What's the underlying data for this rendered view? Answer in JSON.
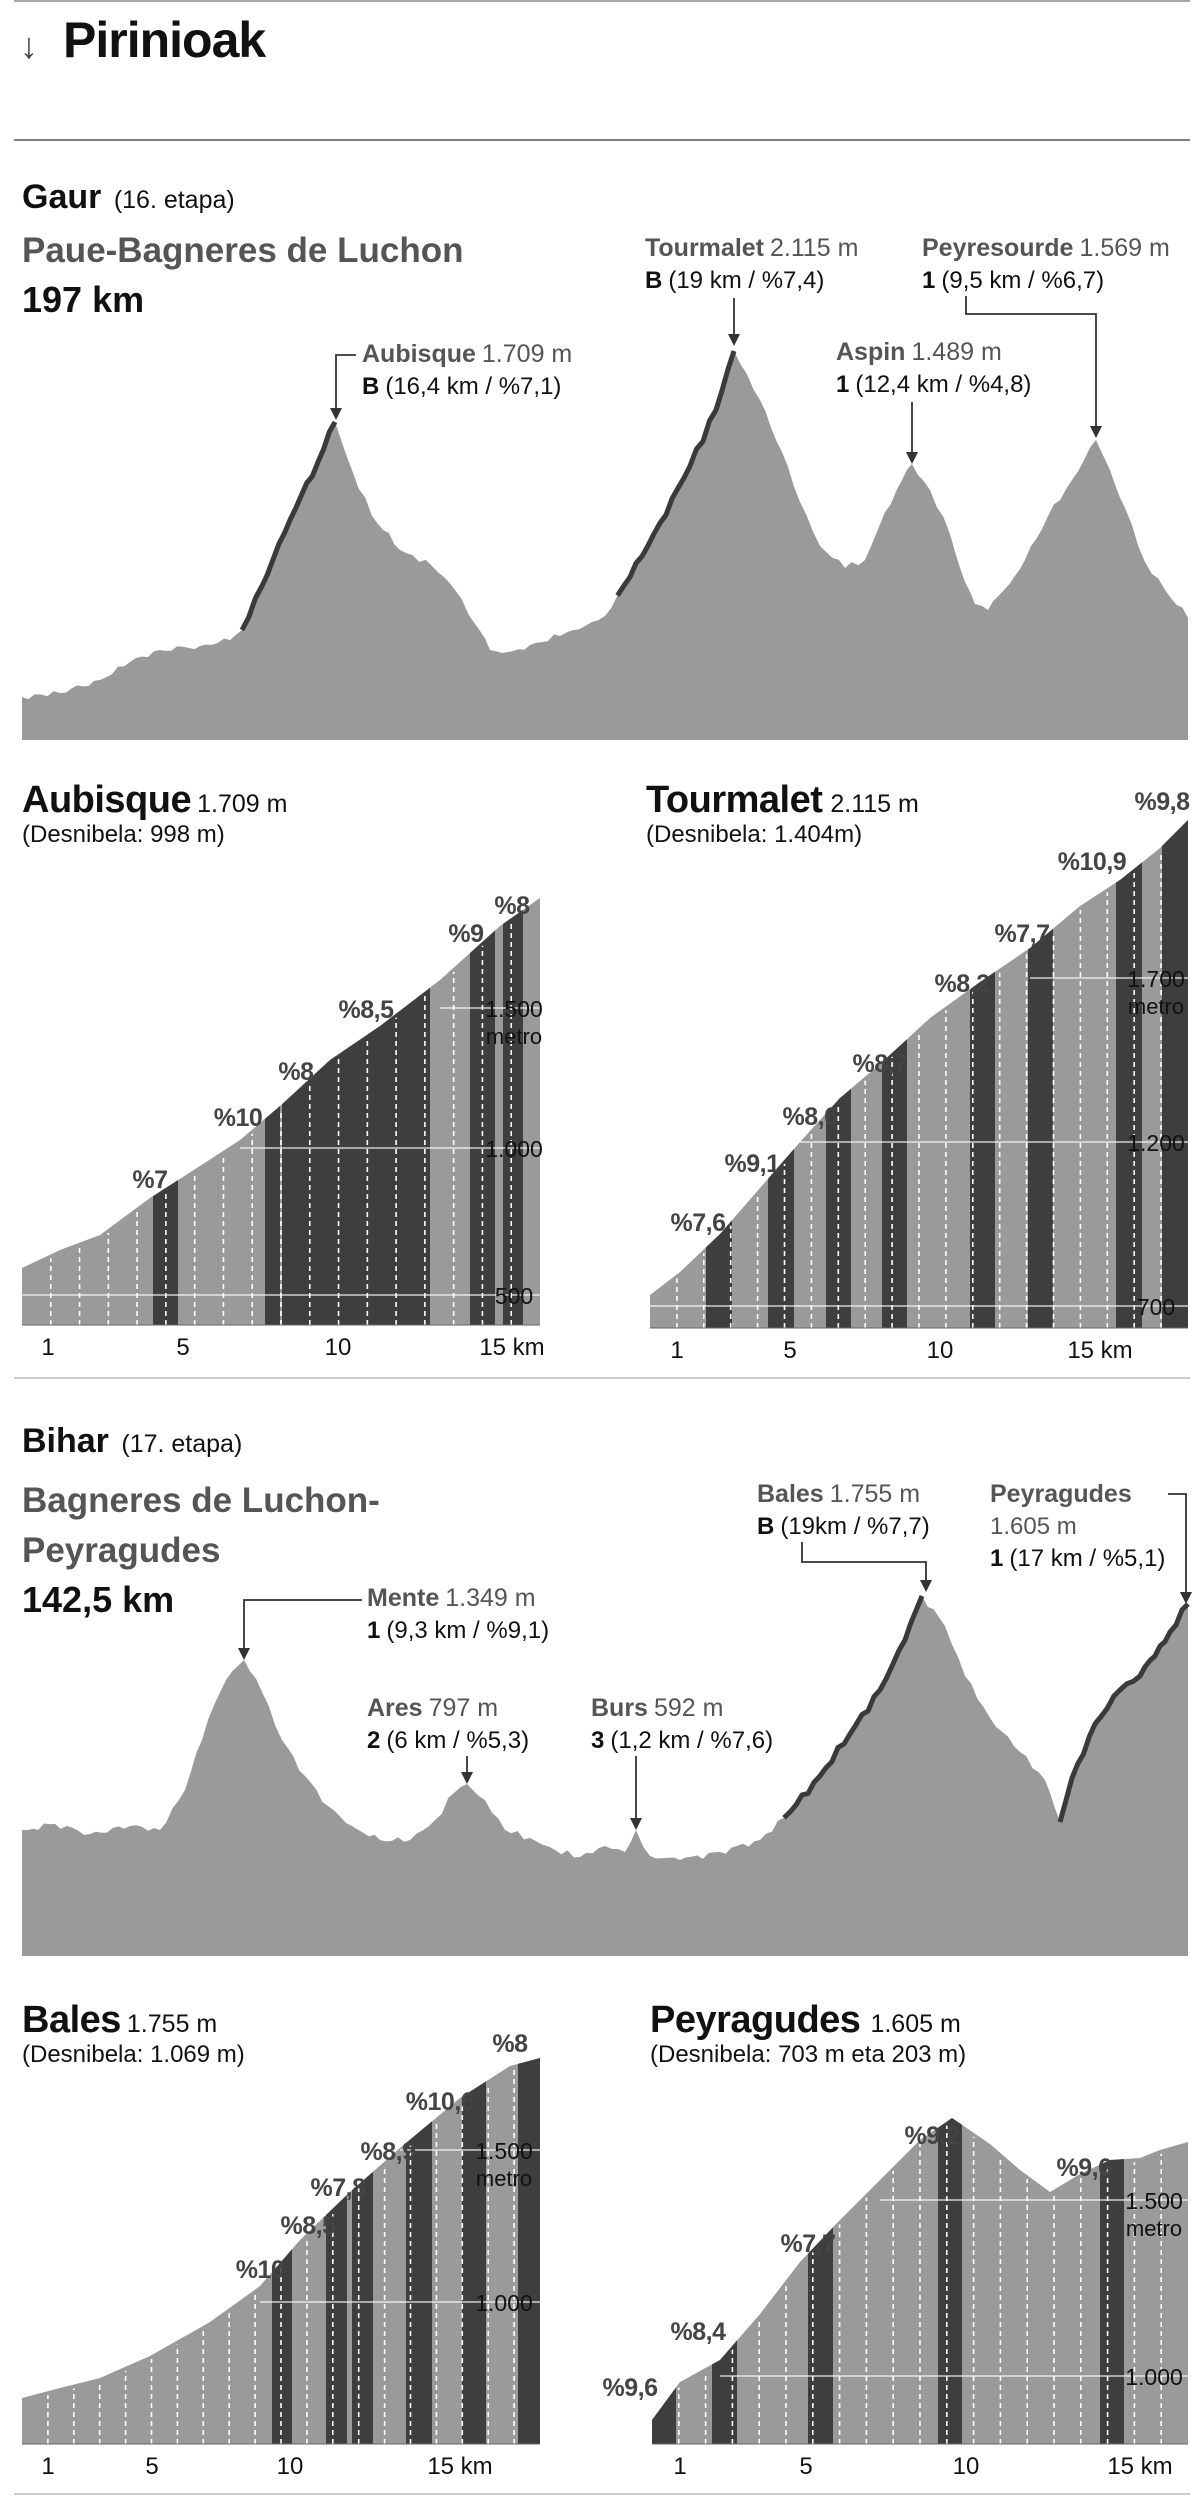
{
  "header": {
    "arrow": "↓",
    "title": "Pirinioak"
  },
  "colors": {
    "profile": "#9a9a9a",
    "dark": "#3e3e3e",
    "ridge": "#3a3a3a",
    "text": "#111111",
    "name": "#555555",
    "grid": "#ffffff"
  },
  "stage1": {
    "day": "Gaur",
    "stage": "(16. etapa)",
    "route": "Paue-Bagneres de Luchon",
    "distance": "197 km"
  },
  "stage2": {
    "day": "Bihar",
    "stage": "(17. etapa)",
    "route1": "Bagneres de Luchon-",
    "route2": "Peyragudes",
    "distance": "142,5 km"
  },
  "chart_data": [
    {
      "type": "area",
      "id": "overview-16",
      "peaks": [
        {
          "name": "Aubisque",
          "elev": "1.709 m",
          "cat": "B",
          "info": "(16,4 km / %7,1)"
        },
        {
          "name": "Tourmalet",
          "elev": "2.115 m",
          "cat": "B",
          "info": "(19 km / %7,4)"
        },
        {
          "name": "Aspin",
          "elev": "1.489 m",
          "cat": "1",
          "info": "(12,4 km / %4,8)"
        },
        {
          "name": "Peyresourde",
          "elev": "1.569 m",
          "cat": "1",
          "info": "(9,5 km / %6,7)"
        }
      ]
    },
    {
      "type": "area",
      "id": "overview-17",
      "peaks": [
        {
          "name": "Mente",
          "elev": "1.349 m",
          "cat": "1",
          "info": "(9,3 km / %9,1)"
        },
        {
          "name": "Ares",
          "elev": "797 m",
          "cat": "2",
          "info": "(6 km / %5,3)"
        },
        {
          "name": "Burs",
          "elev": "592 m",
          "cat": "3",
          "info": "(1,2 km / %7,6)"
        },
        {
          "name": "Bales",
          "elev": "1.755 m",
          "cat": "B",
          "info": "(19km / %7,7)"
        },
        {
          "name": "Peyragudes",
          "elev": "1.605 m",
          "cat": "1",
          "info": "(17 km / %5,1)"
        }
      ]
    },
    {
      "type": "area",
      "id": "aubisque",
      "title": "Aubisque",
      "elev": "1.709 m",
      "subtitle": "(Desnibela: 998 m)",
      "xticks": [
        "1",
        "5",
        "10",
        "15 km"
      ],
      "yticks": [
        "500",
        "1.000",
        "1.500"
      ],
      "yunit": "metro",
      "grades": [
        "%7",
        "%10",
        "%8",
        "%8,5",
        "%9",
        "%8"
      ]
    },
    {
      "type": "area",
      "id": "tourmalet",
      "title": "Tourmalet",
      "elev": "2.115 m",
      "subtitle": "(Desnibela: 1.404m)",
      "xticks": [
        "1",
        "5",
        "10",
        "15 km"
      ],
      "yticks": [
        "700",
        "1.200",
        "1.700"
      ],
      "yunit": "metro",
      "grades": [
        "%7,6",
        "%9,1",
        "%8,6",
        "%8,7",
        "%8,2",
        "%7,7",
        "%10,9",
        "%9,8"
      ]
    },
    {
      "type": "area",
      "id": "bales",
      "title": "Bales",
      "elev": "1.755 m",
      "subtitle": "(Desnibela: 1.069 m)",
      "xticks": [
        "1",
        "5",
        "10",
        "15 km"
      ],
      "yticks": [
        "1.000",
        "1.500"
      ],
      "yunit": "metro",
      "grades": [
        "%10",
        "%8,5",
        "%7,8",
        "%8,9",
        "%10,6",
        "%8"
      ]
    },
    {
      "type": "area",
      "id": "peyragudes",
      "title": "Peyragudes",
      "elev": "1.605 m",
      "subtitle": "(Desnibela: 703 m eta 203 m)",
      "xticks": [
        "1",
        "5",
        "10",
        "15 km"
      ],
      "yticks": [
        "1.000",
        "1.500"
      ],
      "yunit": "metro",
      "grades": [
        "%9,6",
        "%8,4",
        "%7,7",
        "%9,2",
        "%9,6"
      ]
    }
  ]
}
